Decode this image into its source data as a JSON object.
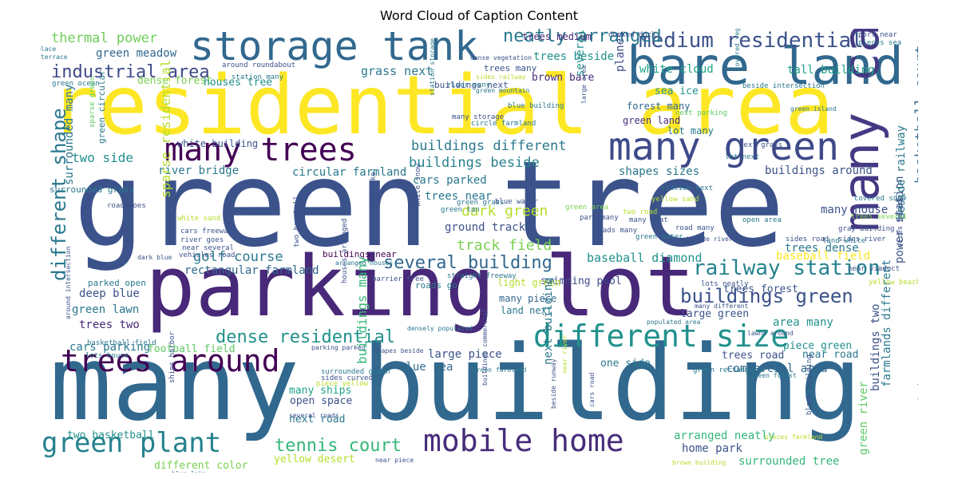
{
  "title": "Word Cloud of Caption Content",
  "words": [
    {
      "text": "green tree",
      "color": "#3b528b"
    },
    {
      "text": "residential area",
      "color": "#fde725"
    },
    {
      "text": "many building",
      "color": "#31688e"
    },
    {
      "text": "parking lot",
      "color": "#482878"
    },
    {
      "text": "bare land",
      "color": "#31688e"
    },
    {
      "text": "storage tank",
      "color": "#31688e"
    },
    {
      "text": "many trees",
      "color": "#440154"
    },
    {
      "text": "many green",
      "color": "#3e4a89"
    },
    {
      "text": "trees around",
      "color": "#440154"
    },
    {
      "text": "green plant",
      "color": "#26828e"
    },
    {
      "text": "mobile home",
      "color": "#472d7b"
    },
    {
      "text": "different size",
      "color": "#21918c"
    },
    {
      "text": "many car",
      "color": "#443983"
    },
    {
      "text": "medium residential",
      "color": "#3b528b"
    },
    {
      "text": "industrial area",
      "color": "#3e4a89"
    },
    {
      "text": "railway station",
      "color": "#26828e"
    },
    {
      "text": "buildings green",
      "color": "#3b528b"
    },
    {
      "text": "dense residential",
      "color": "#21918c"
    },
    {
      "text": "tennis court",
      "color": "#35b779"
    },
    {
      "text": "several building",
      "color": "#31688e"
    },
    {
      "text": "different shape",
      "color": "#2a788e"
    },
    {
      "text": "neatly arranged",
      "color": "#2a788e"
    },
    {
      "text": "basketball court",
      "color": "#31688e"
    },
    {
      "text": "buildings different",
      "color": "#2a788e"
    },
    {
      "text": "buildings beside",
      "color": "#26828e"
    },
    {
      "text": "golf course",
      "color": "#2a788e"
    },
    {
      "text": "track field",
      "color": "#7ad151"
    },
    {
      "text": "dark green",
      "color": "#b5de2b"
    },
    {
      "text": "thermal power",
      "color": "#6ece58"
    },
    {
      "text": "green meadow",
      "color": "#31688e"
    },
    {
      "text": "grass next",
      "color": "#2a788e"
    },
    {
      "text": "trees beside",
      "color": "#21918c"
    },
    {
      "text": "white cloud",
      "color": "#20a386"
    },
    {
      "text": "tall building",
      "color": "#1fa088"
    },
    {
      "text": "dense forest",
      "color": "#7ad151"
    },
    {
      "text": "houses tree",
      "color": "#21918c"
    },
    {
      "text": "brown bare",
      "color": "#482878"
    },
    {
      "text": "sea ice",
      "color": "#21918c"
    },
    {
      "text": "forest many",
      "color": "#31688e"
    },
    {
      "text": "green land",
      "color": "#472d7b"
    },
    {
      "text": "lot many",
      "color": "#2a788e"
    },
    {
      "text": "two side",
      "color": "#21918c"
    },
    {
      "text": "river bridge",
      "color": "#2a788e"
    },
    {
      "text": "circular farmland",
      "color": "#2a788e"
    },
    {
      "text": "shapes sizes",
      "color": "#2a788e"
    },
    {
      "text": "buildings around",
      "color": "#3b528b"
    },
    {
      "text": "cars parked",
      "color": "#2a788e"
    },
    {
      "text": "trees near",
      "color": "#2a788e"
    },
    {
      "text": "ground track",
      "color": "#3b528b"
    },
    {
      "text": "buildings near",
      "color": "#440154"
    },
    {
      "text": "baseball diamond",
      "color": "#21918c"
    },
    {
      "text": "baseball field",
      "color": "#fde725"
    },
    {
      "text": "rectangular farmland",
      "color": "#31688e"
    },
    {
      "text": "swimming pool",
      "color": "#3e4a89"
    },
    {
      "text": "deep blue",
      "color": "#3b528b"
    },
    {
      "text": "green lawn",
      "color": "#2a788e"
    },
    {
      "text": "trees two",
      "color": "#482878"
    },
    {
      "text": "cars parking",
      "color": "#2a788e"
    },
    {
      "text": "football field",
      "color": "#5ec962"
    },
    {
      "text": "many house",
      "color": "#3b528b"
    },
    {
      "text": "trees dense",
      "color": "#2a788e"
    },
    {
      "text": "area many",
      "color": "#21918c"
    },
    {
      "text": "large green",
      "color": "#3b528b"
    },
    {
      "text": "trees forest",
      "color": "#3b528b"
    },
    {
      "text": "piece green",
      "color": "#21918c"
    },
    {
      "text": "trees road",
      "color": "#3b528b"
    },
    {
      "text": "near road",
      "color": "#2a788e"
    },
    {
      "text": "commercial area",
      "color": "#31688e"
    },
    {
      "text": "power station",
      "color": "#3b528b"
    },
    {
      "text": "large piece",
      "color": "#3b528b"
    },
    {
      "text": "blue sea",
      "color": "#31688e"
    },
    {
      "text": "one side",
      "color": "#2a788e"
    },
    {
      "text": "next road",
      "color": "#2a788e"
    },
    {
      "text": "home park",
      "color": "#3b528b"
    },
    {
      "text": "arranged neatly",
      "color": "#35b779"
    },
    {
      "text": "surrounded tree",
      "color": "#35b779"
    },
    {
      "text": "two basketball",
      "color": "#21918c"
    },
    {
      "text": "open space",
      "color": "#3b528b"
    },
    {
      "text": "many ships",
      "color": "#20a386"
    },
    {
      "text": "different color",
      "color": "#7ad151"
    },
    {
      "text": "yellow desert",
      "color": "#b5de2b"
    },
    {
      "text": "light green",
      "color": "#b5de2b"
    },
    {
      "text": "many piece",
      "color": "#31688e"
    },
    {
      "text": "land next",
      "color": "#2a788e"
    },
    {
      "text": "parked open",
      "color": "#2a788e"
    },
    {
      "text": "sparse residential",
      "color": "#b5de2b"
    },
    {
      "text": "surrounded many",
      "color": "#2a788e"
    },
    {
      "text": "buildings many",
      "color": "#35b779"
    },
    {
      "text": "beside railway",
      "color": "#2a788e"
    },
    {
      "text": "buildings two",
      "color": "#3b528b"
    },
    {
      "text": "farmlands different",
      "color": "#2a788e"
    },
    {
      "text": "green river",
      "color": "#5ec962"
    },
    {
      "text": "several green",
      "color": "#21918c"
    },
    {
      "text": "planes parked",
      "color": "#3e4a89"
    },
    {
      "text": "roads go",
      "color": "#2a788e"
    },
    {
      "text": "next building",
      "color": "#2a788e"
    },
    {
      "text": "residential grass",
      "color": "#3b528b"
    },
    {
      "text": "buildings industrial",
      "color": "#3b528b"
    },
    {
      "text": "trees medium",
      "color": "#482878"
    },
    {
      "text": "trees many",
      "color": "#3b528b"
    },
    {
      "text": "buildings next",
      "color": "#3b528b"
    },
    {
      "text": "green ocean",
      "color": "#2a788e"
    },
    {
      "text": "station many",
      "color": "#2a788e"
    },
    {
      "text": "around roundabout",
      "color": "#3b528b"
    },
    {
      "text": "docked dock",
      "color": "#3b528b"
    },
    {
      "text": "white building",
      "color": "#3b528b"
    },
    {
      "text": "surrounded grass",
      "color": "#2a788e"
    },
    {
      "text": "green circular",
      "color": "#2a788e"
    },
    {
      "text": "river many",
      "color": "#2a788e"
    },
    {
      "text": "beside intersection",
      "color": "#2a788e"
    },
    {
      "text": "port near",
      "color": "#3b528b"
    },
    {
      "text": "pieces sea",
      "color": "#2a788e"
    },
    {
      "text": "open place",
      "color": "#2a788e"
    },
    {
      "text": "green terrace",
      "color": "#2a788e"
    },
    {
      "text": "blue building",
      "color": "#2a788e"
    },
    {
      "text": "next parking",
      "color": "#5ec962"
    },
    {
      "text": "circle farmland",
      "color": "#2a788e"
    },
    {
      "text": "many storage",
      "color": "#3b528b"
    },
    {
      "text": "next grass",
      "color": "#3b528b"
    },
    {
      "text": "lot next",
      "color": "#2a788e"
    },
    {
      "text": "station next",
      "color": "#2a788e"
    },
    {
      "text": "yellow sand",
      "color": "#b5de2b"
    },
    {
      "text": "two road",
      "color": "#b5de2b"
    },
    {
      "text": "many boat",
      "color": "#3b528b"
    },
    {
      "text": "park many",
      "color": "#3b528b"
    },
    {
      "text": "roads many",
      "color": "#3b528b"
    },
    {
      "text": "road many",
      "color": "#3b528b"
    },
    {
      "text": "green water",
      "color": "#2a788e"
    },
    {
      "text": "open area",
      "color": "#2a788e"
    },
    {
      "text": "gray building",
      "color": "#3b528b"
    },
    {
      "text": "sides river",
      "color": "#3b528b"
    },
    {
      "text": "sides road",
      "color": "#3b528b"
    },
    {
      "text": "near viaduct",
      "color": "#3b528b"
    },
    {
      "text": "lots neatly",
      "color": "#3b528b"
    },
    {
      "text": "yellow beach",
      "color": "#b5de2b"
    },
    {
      "text": "lawns around",
      "color": "#3b528b"
    },
    {
      "text": "green forest",
      "color": "#2a788e"
    },
    {
      "text": "green area",
      "color": "#7ad151"
    },
    {
      "text": "white snow",
      "color": "#3b528b"
    },
    {
      "text": "blue water",
      "color": "#3b528b"
    },
    {
      "text": "green grass",
      "color": "#2a788e"
    },
    {
      "text": "green tan",
      "color": "#2a788e"
    },
    {
      "text": "white sand",
      "color": "#b5de2b"
    },
    {
      "text": "cars freeway",
      "color": "#3b528b"
    },
    {
      "text": "road goes",
      "color": "#3b528b"
    },
    {
      "text": "river goes",
      "color": "#3b528b"
    },
    {
      "text": "near several",
      "color": "#3b528b"
    },
    {
      "text": "vehicles road",
      "color": "#3b528b"
    },
    {
      "text": "dark blue",
      "color": "#3b528b"
    },
    {
      "text": "barrier tree",
      "color": "#3b528b"
    },
    {
      "text": "straight freeway",
      "color": "#2a788e"
    },
    {
      "text": "basketball field",
      "color": "#2a788e"
    },
    {
      "text": "lots house",
      "color": "#2a788e"
    },
    {
      "text": "surrounded green",
      "color": "#2a788e"
    },
    {
      "text": "sides curved",
      "color": "#3b528b"
    },
    {
      "text": "piece yellow",
      "color": "#b5de2b"
    },
    {
      "text": "parking parked",
      "color": "#3b528b"
    },
    {
      "text": "shapes beside",
      "color": "#3b528b"
    },
    {
      "text": "near piece",
      "color": "#3b528b"
    },
    {
      "text": "several roads",
      "color": "#3b528b"
    },
    {
      "text": "cars road",
      "color": "#3b528b"
    },
    {
      "text": "ships harbor",
      "color": "#3b528b"
    },
    {
      "text": "green farmland",
      "color": "#2a788e"
    },
    {
      "text": "brown building",
      "color": "#b5de2b"
    },
    {
      "text": "black building",
      "color": "#3b528b"
    },
    {
      "text": "green rectangular",
      "color": "#2a788e"
    },
    {
      "text": "trees several",
      "color": "#7ad151"
    },
    {
      "text": "covered snow",
      "color": "#2a788e"
    },
    {
      "text": "sizes beside",
      "color": "#3b528b"
    },
    {
      "text": "land white",
      "color": "#2a788e"
    },
    {
      "text": "green mixed",
      "color": "#2a788e"
    },
    {
      "text": "blue lake",
      "color": "#2a788e"
    },
    {
      "text": "sparse green",
      "color": "#5ec962"
    },
    {
      "text": "two baseball",
      "color": "#3b528b"
    },
    {
      "text": "around intersection",
      "color": "#3b528b"
    },
    {
      "text": "densely populated",
      "color": "#2a788e"
    },
    {
      "text": "houses arranged",
      "color": "#3b528b"
    },
    {
      "text": "around lake",
      "color": "#3b528b"
    },
    {
      "text": "station storage",
      "color": "#2a788e"
    },
    {
      "text": "dense vegetation",
      "color": "#3b528b"
    },
    {
      "text": "sides railway",
      "color": "#b5de2b"
    },
    {
      "text": "green mountain",
      "color": "#2a788e"
    },
    {
      "text": "green island",
      "color": "#2a788e"
    },
    {
      "text": "covered vegetation",
      "color": "#2a788e"
    },
    {
      "text": "large area",
      "color": "#3b528b"
    },
    {
      "text": "arranged houses",
      "color": "#2a788e"
    },
    {
      "text": "populated area",
      "color": "#2a788e"
    },
    {
      "text": "beside runway",
      "color": "#3b528b"
    },
    {
      "text": "near river",
      "color": "#b5de2b"
    },
    {
      "text": "buildings commercial",
      "color": "#3b528b"
    },
    {
      "text": "many different",
      "color": "#3b528b"
    },
    {
      "text": "pieces farmland",
      "color": "#b5de2b"
    },
    {
      "text": "beside river",
      "color": "#3b528b"
    },
    {
      "text": "houses arranged",
      "color": "#2a788e"
    },
    {
      "text": "boats port",
      "color": "#3b528b"
    }
  ]
}
